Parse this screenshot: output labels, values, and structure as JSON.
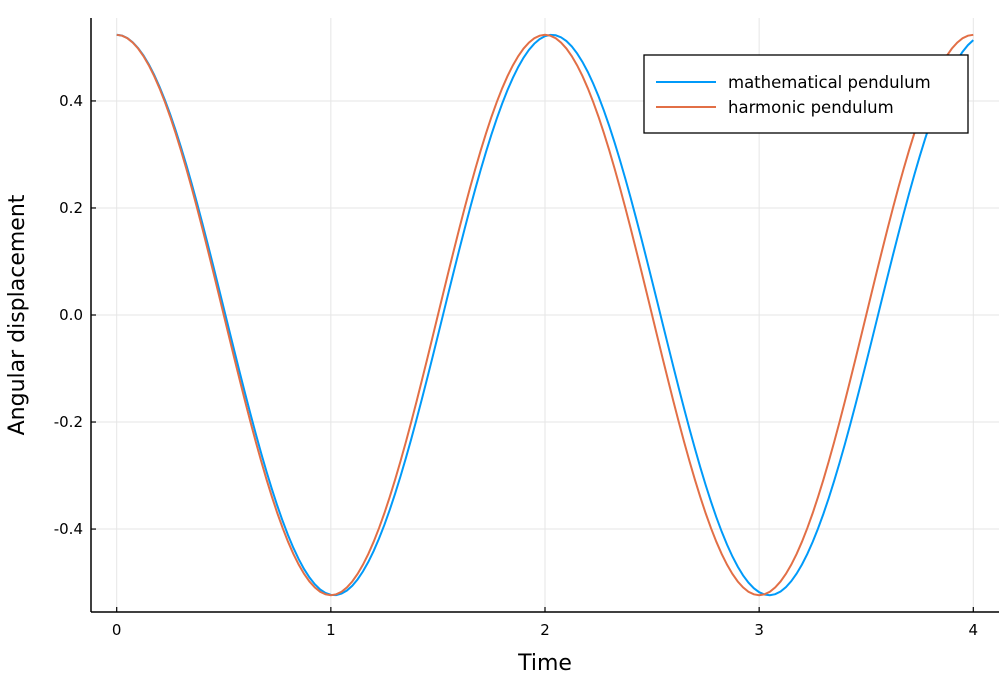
{
  "chart_data": {
    "type": "line",
    "xlabel": "Time",
    "ylabel": "Angular displacement",
    "xlim": [
      -0.12,
      4.12
    ],
    "ylim": [
      -0.555,
      0.555
    ],
    "xticks": [
      0,
      1,
      2,
      3,
      4
    ],
    "xtick_labels": [
      "0",
      "1",
      "2",
      "3",
      "4"
    ],
    "yticks": [
      -0.4,
      -0.2,
      0.0,
      0.2,
      0.4
    ],
    "ytick_labels": [
      "-0.4",
      "-0.2",
      "0.0",
      "0.2",
      "0.4"
    ],
    "grid": true,
    "legend_position": "top-right",
    "series": [
      {
        "name": "mathematical pendulum",
        "color": "#009af9",
        "amplitude": 0.5236,
        "period": 2.0315,
        "x_range": [
          0,
          4
        ]
      },
      {
        "name": "harmonic pendulum",
        "color": "#e26f46",
        "amplitude": 0.5236,
        "period": 2.0,
        "x_range": [
          0,
          4
        ]
      }
    ]
  }
}
